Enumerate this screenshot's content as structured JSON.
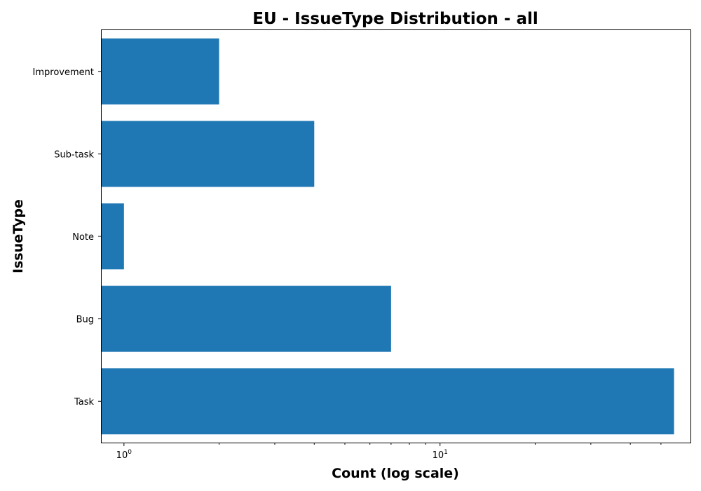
{
  "chart_data": {
    "type": "bar",
    "orientation": "horizontal",
    "title": "EU - IssueType Distribution - all",
    "xlabel": "Count (log scale)",
    "ylabel": "IssueType",
    "x_scale": "log",
    "xlim": [
      0.85,
      62
    ],
    "categories": [
      "Task",
      "Bug",
      "Note",
      "Sub-task",
      "Improvement"
    ],
    "values": [
      55,
      7,
      1,
      4,
      2
    ],
    "x_major_ticks": [
      {
        "value": 1,
        "base": "10",
        "exp": "0"
      },
      {
        "value": 10,
        "base": "10",
        "exp": "1"
      }
    ],
    "x_minor_ticks": [
      2,
      3,
      4,
      5,
      6,
      7,
      8,
      9,
      20,
      30,
      40,
      50
    ],
    "bar_color": "#1f77b4",
    "grid": false,
    "legend": "none"
  }
}
